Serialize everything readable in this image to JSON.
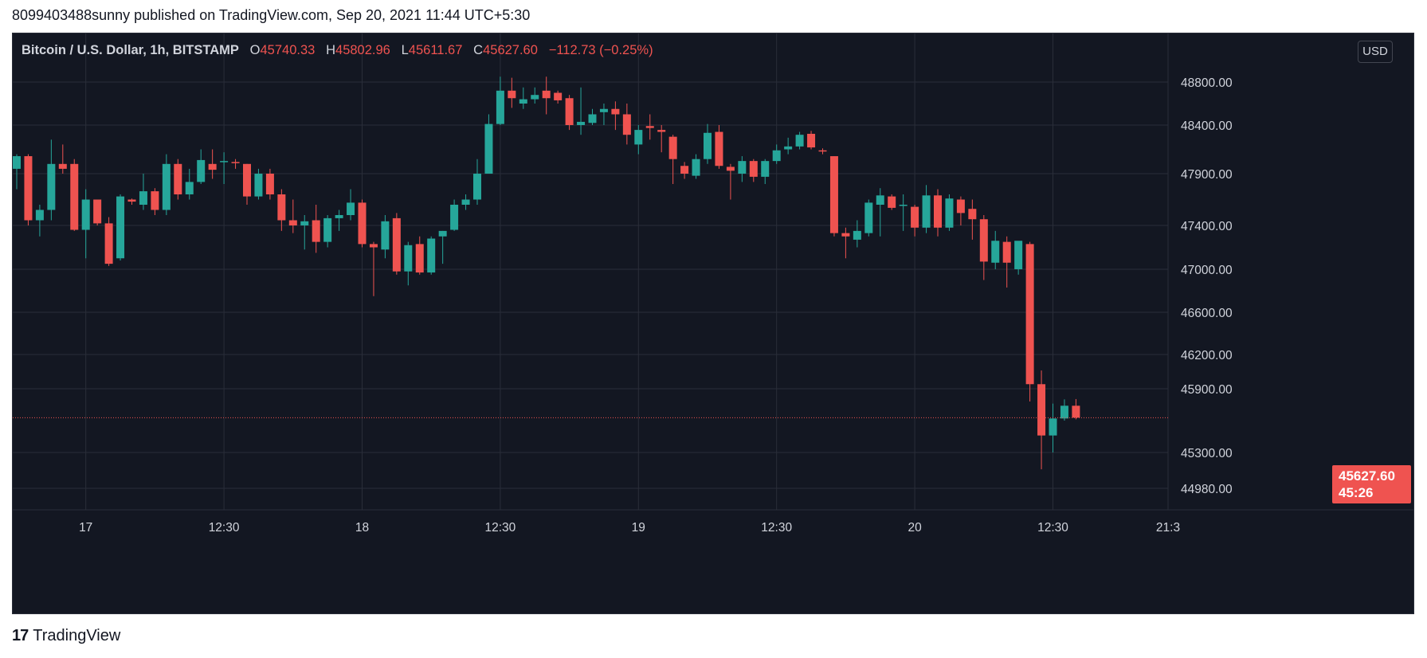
{
  "header": {
    "publisher_line": "8099403488sunny published on TradingView.com, Sep 20, 2021 11:44 UTC+5:30"
  },
  "legend": {
    "symbol": "Bitcoin / U.S. Dollar, 1h, BITSTAMP",
    "o_label": "O",
    "o_value": "45740.33",
    "h_label": "H",
    "h_value": "45802.96",
    "l_label": "L",
    "l_value": "45611.67",
    "c_label": "C",
    "c_value": "45627.60",
    "change": "−112.73 (−0.25%)"
  },
  "currency_button": "USD",
  "last_price": {
    "price": "45627.60",
    "countdown": "45:26",
    "value": 45627.6
  },
  "footer": {
    "brand": "TradingView",
    "logo_text": "17"
  },
  "colors": {
    "up": "#26a69a",
    "down": "#ef5350",
    "background": "#131722",
    "grid": "#2a2e39",
    "text": "#d1d4dc"
  },
  "chart_data": {
    "type": "candlestick",
    "title": "Bitcoin / U.S. Dollar, 1h, BITSTAMP",
    "y_ticks": [
      {
        "label": "48800.00",
        "value": 48800
      },
      {
        "label": "48400.00",
        "value": 48400
      },
      {
        "label": "47900.00",
        "value": 47900
      },
      {
        "label": "47400.00",
        "value": 47400
      },
      {
        "label": "47000.00",
        "value": 47000
      },
      {
        "label": "46600.00",
        "value": 46600
      },
      {
        "label": "46200.00",
        "value": 46200
      },
      {
        "label": "45900.00",
        "value": 45900
      },
      {
        "label": "45300.00",
        "value": 45300
      },
      {
        "label": "44980.00",
        "value": 44980
      }
    ],
    "x_ticks": [
      {
        "label": "17",
        "index": 6
      },
      {
        "label": "12:30",
        "index": 18
      },
      {
        "label": "18",
        "index": 30
      },
      {
        "label": "12:30",
        "index": 42
      },
      {
        "label": "19",
        "index": 54
      },
      {
        "label": "12:30",
        "index": 66
      },
      {
        "label": "20",
        "index": 78
      },
      {
        "label": "12:30",
        "index": 90
      },
      {
        "label": "21:3",
        "index": 100
      }
    ],
    "grid": true,
    "candles": [
      [
        47950,
        48100,
        47750,
        48080
      ],
      [
        48080,
        48100,
        47400,
        47450
      ],
      [
        47450,
        47600,
        47300,
        47550
      ],
      [
        47550,
        48250,
        47450,
        48000
      ],
      [
        48000,
        48200,
        47900,
        47950
      ],
      [
        48000,
        48050,
        47350,
        47360
      ],
      [
        47360,
        47750,
        47100,
        47650
      ],
      [
        47650,
        47650,
        47400,
        47420
      ],
      [
        47420,
        47480,
        47030,
        47050
      ],
      [
        47100,
        47700,
        47080,
        47680
      ],
      [
        47650,
        47660,
        47600,
        47630
      ],
      [
        47600,
        47900,
        47550,
        47730
      ],
      [
        47730,
        47760,
        47500,
        47550
      ],
      [
        47550,
        48100,
        47500,
        48000
      ],
      [
        48000,
        48050,
        47650,
        47700
      ],
      [
        47700,
        47950,
        47650,
        47820
      ],
      [
        47820,
        48150,
        47800,
        48040
      ],
      [
        48000,
        48150,
        47850,
        47940
      ],
      [
        48020,
        48120,
        47800,
        48030
      ],
      [
        48020,
        48050,
        47950,
        48010
      ],
      [
        48000,
        48000,
        47600,
        47680
      ],
      [
        47680,
        47950,
        47650,
        47900
      ],
      [
        47900,
        47950,
        47650,
        47700
      ],
      [
        47700,
        47750,
        47350,
        47450
      ],
      [
        47450,
        47650,
        47330,
        47400
      ],
      [
        47400,
        47500,
        47180,
        47440
      ],
      [
        47450,
        47600,
        47150,
        47250
      ],
      [
        47250,
        47500,
        47200,
        47470
      ],
      [
        47470,
        47550,
        47350,
        47500
      ],
      [
        47500,
        47750,
        47450,
        47620
      ],
      [
        47620,
        47650,
        47200,
        47230
      ],
      [
        47230,
        47250,
        46750,
        47200
      ],
      [
        47180,
        47500,
        47100,
        47440
      ],
      [
        47470,
        47520,
        46950,
        46980
      ],
      [
        46980,
        47250,
        46850,
        47220
      ],
      [
        47230,
        47300,
        46950,
        46970
      ],
      [
        46970,
        47300,
        46950,
        47280
      ],
      [
        47300,
        47350,
        47050,
        47350
      ],
      [
        47360,
        47650,
        47350,
        47600
      ],
      [
        47600,
        47700,
        47550,
        47650
      ],
      [
        47650,
        48050,
        47600,
        47900
      ],
      [
        47900,
        48500,
        47900,
        48410
      ],
      [
        48410,
        48850,
        48400,
        48720
      ],
      [
        48720,
        48840,
        48560,
        48650
      ],
      [
        48600,
        48750,
        48550,
        48640
      ],
      [
        48640,
        48750,
        48600,
        48680
      ],
      [
        48720,
        48850,
        48500,
        48650
      ],
      [
        48700,
        48720,
        48600,
        48630
      ],
      [
        48650,
        48680,
        48350,
        48400
      ],
      [
        48400,
        48750,
        48300,
        48430
      ],
      [
        48420,
        48550,
        48400,
        48500
      ],
      [
        48520,
        48600,
        48400,
        48550
      ],
      [
        48550,
        48620,
        48350,
        48500
      ],
      [
        48500,
        48600,
        48200,
        48300
      ],
      [
        48200,
        48400,
        48100,
        48350
      ],
      [
        48390,
        48500,
        48250,
        48370
      ],
      [
        48350,
        48400,
        48120,
        48330
      ],
      [
        48280,
        48300,
        47800,
        48050
      ],
      [
        47980,
        48020,
        47850,
        47900
      ],
      [
        47880,
        48100,
        47850,
        48050
      ],
      [
        48050,
        48410,
        48000,
        48320
      ],
      [
        48330,
        48400,
        47950,
        47980
      ],
      [
        47970,
        48000,
        47650,
        47930
      ],
      [
        47900,
        48080,
        47820,
        48030
      ],
      [
        48030,
        48050,
        47820,
        47870
      ],
      [
        47870,
        48050,
        47800,
        48030
      ],
      [
        48030,
        48200,
        48000,
        48140
      ],
      [
        48150,
        48270,
        48100,
        48180
      ],
      [
        48180,
        48330,
        48150,
        48300
      ],
      [
        48310,
        48340,
        48150,
        48170
      ],
      [
        48140,
        48160,
        48100,
        48130
      ],
      [
        48080,
        48080,
        47300,
        47330
      ],
      [
        47330,
        47380,
        47100,
        47300
      ],
      [
        47270,
        47450,
        47200,
        47350
      ],
      [
        47330,
        47650,
        47300,
        47620
      ],
      [
        47600,
        47760,
        47300,
        47690
      ],
      [
        47680,
        47700,
        47550,
        47570
      ],
      [
        47600,
        47700,
        47350,
        47600
      ],
      [
        47580,
        47600,
        47300,
        47380
      ],
      [
        47380,
        47790,
        47330,
        47690
      ],
      [
        47690,
        47750,
        47300,
        47380
      ],
      [
        47380,
        47700,
        47350,
        47660
      ],
      [
        47650,
        47680,
        47400,
        47520
      ],
      [
        47560,
        47650,
        47270,
        47460
      ],
      [
        47460,
        47500,
        46900,
        47070
      ],
      [
        47060,
        47350,
        47000,
        47260
      ],
      [
        47250,
        47300,
        46830,
        47060
      ],
      [
        47000,
        47250,
        46950,
        47260
      ],
      [
        47230,
        47250,
        45780,
        45940
      ],
      [
        45940,
        46060,
        45150,
        45460
      ],
      [
        45460,
        45760,
        45300,
        45620
      ],
      [
        45620,
        45800,
        45600,
        45740
      ],
      [
        45740,
        45803,
        45612,
        45628
      ]
    ]
  }
}
